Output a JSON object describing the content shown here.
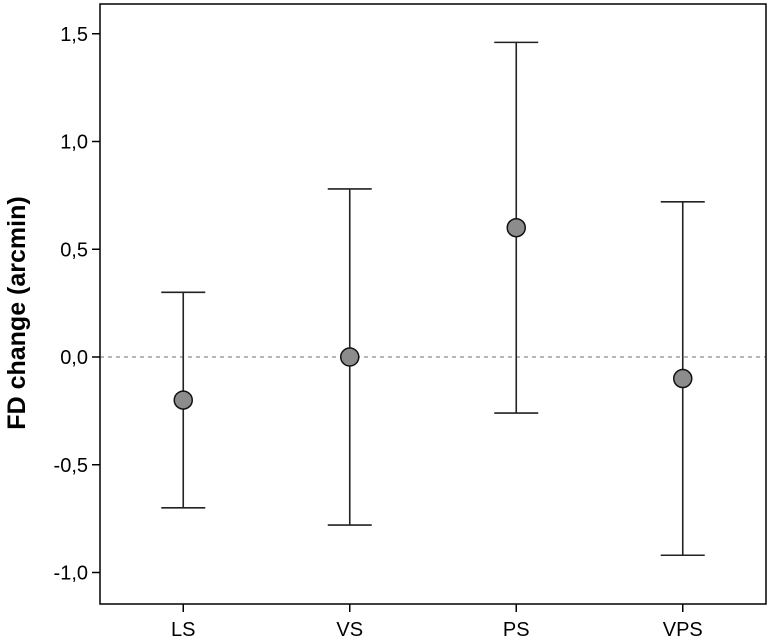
{
  "chart_data": {
    "type": "scatter",
    "title": "",
    "xlabel": "",
    "ylabel": "FD change (arcmin)",
    "ylim": [
      -1.15,
      1.6
    ],
    "yticks": [
      -1.0,
      -0.5,
      0.0,
      0.5,
      1.0,
      1.5
    ],
    "ytick_labels": [
      "-1,0",
      "-0,5",
      "0,0",
      "0,5",
      "1,0",
      "1,5"
    ],
    "categories": [
      "LS",
      "VS",
      "PS",
      "VPS"
    ],
    "series": [
      {
        "values": [
          -0.2,
          0.0,
          0.6,
          -0.1
        ],
        "lower": [
          -0.7,
          -0.78,
          -0.26,
          -0.92
        ],
        "upper": [
          0.3,
          0.78,
          1.46,
          0.72
        ]
      }
    ],
    "reference_line": {
      "y": 0.0,
      "style": "dashed"
    },
    "grid": false,
    "colors": {
      "point_fill": "#8c8c8c",
      "line": "#222222",
      "reference": "#8a8a8a"
    }
  }
}
